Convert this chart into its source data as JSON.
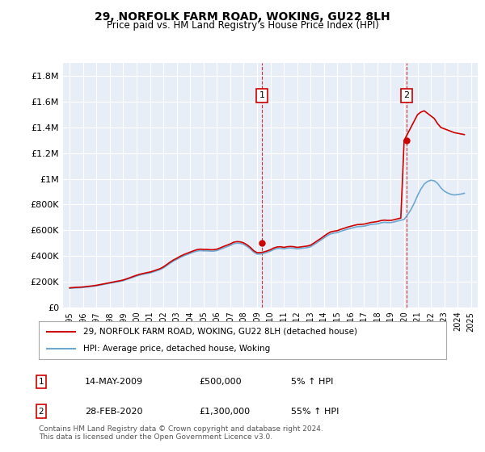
{
  "title": "29, NORFOLK FARM ROAD, WOKING, GU22 8LH",
  "subtitle": "Price paid vs. HM Land Registry's House Price Index (HPI)",
  "xlabel": "",
  "ylabel": "",
  "ylim": [
    0,
    1900000
  ],
  "yticks": [
    0,
    200000,
    400000,
    600000,
    800000,
    1000000,
    1200000,
    1400000,
    1600000,
    1800000
  ],
  "ytick_labels": [
    "£0",
    "£200K",
    "£400K",
    "£600K",
    "£800K",
    "£1M",
    "£1.2M",
    "£1.4M",
    "£1.6M",
    "£1.8M"
  ],
  "background_color": "#ffffff",
  "plot_bg_color": "#e8eef7",
  "grid_color": "#ffffff",
  "transaction1_date": 2009.37,
  "transaction1_price": 500000,
  "transaction2_date": 2020.16,
  "transaction2_price": 1300000,
  "legend_label_red": "29, NORFOLK FARM ROAD, WOKING, GU22 8LH (detached house)",
  "legend_label_blue": "HPI: Average price, detached house, Woking",
  "annotation1_label": "1",
  "annotation1_date": "14-MAY-2009",
  "annotation1_price": "£500,000",
  "annotation1_hpi": "5% ↑ HPI",
  "annotation2_label": "2",
  "annotation2_date": "28-FEB-2020",
  "annotation2_price": "£1,300,000",
  "annotation2_hpi": "55% ↑ HPI",
  "footer": "Contains HM Land Registry data © Crown copyright and database right 2024.\nThis data is licensed under the Open Government Licence v3.0.",
  "hpi_line_color": "#6fa8d0",
  "price_line_color": "#cc0000",
  "dashed_line_color": "#cc0000",
  "hpi_data": {
    "years": [
      1995.0,
      1995.25,
      1995.5,
      1995.75,
      1996.0,
      1996.25,
      1996.5,
      1996.75,
      1997.0,
      1997.25,
      1997.5,
      1997.75,
      1998.0,
      1998.25,
      1998.5,
      1998.75,
      1999.0,
      1999.25,
      1999.5,
      1999.75,
      2000.0,
      2000.25,
      2000.5,
      2000.75,
      2001.0,
      2001.25,
      2001.5,
      2001.75,
      2002.0,
      2002.25,
      2002.5,
      2002.75,
      2003.0,
      2003.25,
      2003.5,
      2003.75,
      2004.0,
      2004.25,
      2004.5,
      2004.75,
      2005.0,
      2005.25,
      2005.5,
      2005.75,
      2006.0,
      2006.25,
      2006.5,
      2006.75,
      2007.0,
      2007.25,
      2007.5,
      2007.75,
      2008.0,
      2008.25,
      2008.5,
      2008.75,
      2009.0,
      2009.25,
      2009.5,
      2009.75,
      2010.0,
      2010.25,
      2010.5,
      2010.75,
      2011.0,
      2011.25,
      2011.5,
      2011.75,
      2012.0,
      2012.25,
      2012.5,
      2012.75,
      2013.0,
      2013.25,
      2013.5,
      2013.75,
      2014.0,
      2014.25,
      2014.5,
      2014.75,
      2015.0,
      2015.25,
      2015.5,
      2015.75,
      2016.0,
      2016.25,
      2016.5,
      2016.75,
      2017.0,
      2017.25,
      2017.5,
      2017.75,
      2018.0,
      2018.25,
      2018.5,
      2018.75,
      2019.0,
      2019.25,
      2019.5,
      2019.75,
      2020.0,
      2020.25,
      2020.5,
      2020.75,
      2021.0,
      2021.25,
      2021.5,
      2021.75,
      2022.0,
      2022.25,
      2022.5,
      2022.75,
      2023.0,
      2023.25,
      2023.5,
      2023.75,
      2024.0,
      2024.25,
      2024.5
    ],
    "values": [
      148000,
      150000,
      152000,
      153000,
      155000,
      158000,
      161000,
      164000,
      168000,
      173000,
      178000,
      183000,
      188000,
      193000,
      198000,
      202000,
      208000,
      217000,
      226000,
      235000,
      244000,
      252000,
      258000,
      263000,
      268000,
      276000,
      285000,
      294000,
      307000,
      325000,
      343000,
      360000,
      373000,
      388000,
      400000,
      410000,
      420000,
      430000,
      438000,
      442000,
      440000,
      440000,
      438000,
      438000,
      442000,
      452000,
      462000,
      472000,
      482000,
      495000,
      500000,
      498000,
      490000,
      475000,
      455000,
      430000,
      415000,
      415000,
      420000,
      428000,
      438000,
      450000,
      458000,
      460000,
      455000,
      460000,
      462000,
      460000,
      455000,
      458000,
      462000,
      465000,
      472000,
      488000,
      505000,
      522000,
      540000,
      558000,
      572000,
      578000,
      582000,
      592000,
      600000,
      608000,
      615000,
      622000,
      628000,
      630000,
      632000,
      638000,
      645000,
      648000,
      650000,
      658000,
      662000,
      660000,
      660000,
      665000,
      672000,
      678000,
      685000,
      720000,
      760000,
      810000,
      870000,
      920000,
      960000,
      980000,
      990000,
      985000,
      965000,
      930000,
      905000,
      890000,
      880000,
      875000,
      878000,
      882000,
      888000
    ]
  },
  "price_paid_data": {
    "years": [
      1995.0,
      1995.25,
      1995.5,
      1995.75,
      1996.0,
      1996.25,
      1996.5,
      1996.75,
      1997.0,
      1997.25,
      1997.5,
      1997.75,
      1998.0,
      1998.25,
      1998.5,
      1998.75,
      1999.0,
      1999.25,
      1999.5,
      1999.75,
      2000.0,
      2000.25,
      2000.5,
      2000.75,
      2001.0,
      2001.25,
      2001.5,
      2001.75,
      2002.0,
      2002.25,
      2002.5,
      2002.75,
      2003.0,
      2003.25,
      2003.5,
      2003.75,
      2004.0,
      2004.25,
      2004.5,
      2004.75,
      2005.0,
      2005.25,
      2005.5,
      2005.75,
      2006.0,
      2006.25,
      2006.5,
      2006.75,
      2007.0,
      2007.25,
      2007.5,
      2007.75,
      2008.0,
      2008.25,
      2008.5,
      2008.75,
      2009.0,
      2009.25,
      2009.5,
      2009.75,
      2010.0,
      2010.25,
      2010.5,
      2010.75,
      2011.0,
      2011.25,
      2011.5,
      2011.75,
      2012.0,
      2012.25,
      2012.5,
      2012.75,
      2013.0,
      2013.25,
      2013.5,
      2013.75,
      2014.0,
      2014.25,
      2014.5,
      2014.75,
      2015.0,
      2015.25,
      2015.5,
      2015.75,
      2016.0,
      2016.25,
      2016.5,
      2016.75,
      2017.0,
      2017.25,
      2017.5,
      2017.75,
      2018.0,
      2018.25,
      2018.5,
      2018.75,
      2019.0,
      2019.25,
      2019.5,
      2019.75,
      2020.0,
      2020.25,
      2020.5,
      2020.75,
      2021.0,
      2021.25,
      2021.5,
      2021.75,
      2022.0,
      2022.25,
      2022.5,
      2022.75,
      2023.0,
      2023.25,
      2023.5,
      2023.75,
      2024.0,
      2024.25,
      2024.5
    ],
    "values": [
      152000,
      154000,
      156000,
      157000,
      159000,
      162000,
      165000,
      168000,
      172000,
      177000,
      182000,
      187000,
      192000,
      197000,
      203000,
      207000,
      213000,
      222000,
      231000,
      241000,
      250000,
      258000,
      264000,
      270000,
      275000,
      283000,
      292000,
      301000,
      315000,
      333000,
      352000,
      369000,
      382000,
      397000,
      410000,
      420000,
      430000,
      440000,
      449000,
      453000,
      451000,
      451000,
      449000,
      449000,
      453000,
      463000,
      474000,
      484000,
      494000,
      507000,
      512000,
      510000,
      502000,
      487000,
      467000,
      441000,
      426000,
      426000,
      431000,
      439000,
      449000,
      462000,
      470000,
      472000,
      467000,
      472000,
      474000,
      472000,
      467000,
      470000,
      474000,
      477000,
      484000,
      500000,
      518000,
      535000,
      554000,
      572000,
      587000,
      593000,
      597000,
      607000,
      615000,
      624000,
      631000,
      638000,
      644000,
      646000,
      648000,
      654000,
      661000,
      664000,
      668000,
      675000,
      679000,
      677000,
      677000,
      682000,
      689000,
      695000,
      1300000,
      1350000,
      1400000,
      1450000,
      1500000,
      1520000,
      1530000,
      1510000,
      1490000,
      1470000,
      1430000,
      1400000,
      1390000,
      1380000,
      1370000,
      1360000,
      1355000,
      1350000,
      1345000
    ]
  }
}
